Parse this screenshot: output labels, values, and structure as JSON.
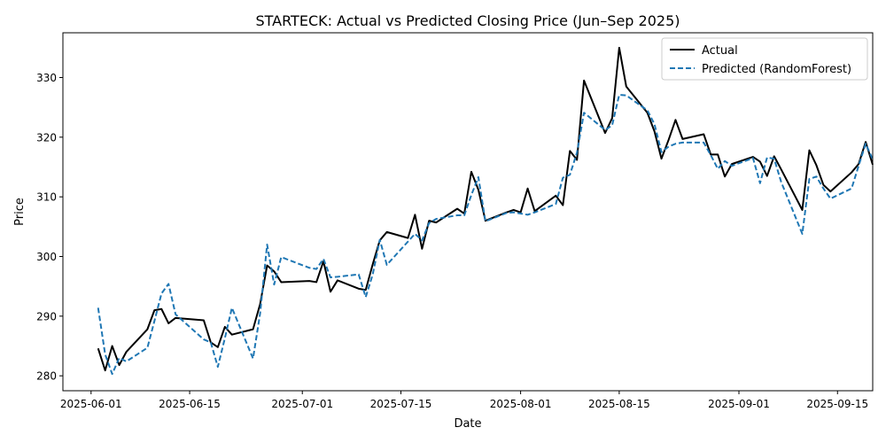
{
  "chart_data": {
    "type": "line",
    "title": "STARTECK: Actual vs Predicted Closing Price (Jun–Sep 2025)",
    "xlabel": "Date",
    "ylabel": "Price",
    "x_axis_type": "date",
    "xlim": [
      "2025-05-28",
      "2025-09-20"
    ],
    "ylim": [
      277.5,
      337.5
    ],
    "x_ticks": [
      "2025-06-01",
      "2025-06-15",
      "2025-07-01",
      "2025-07-15",
      "2025-08-01",
      "2025-08-15",
      "2025-09-01",
      "2025-09-15"
    ],
    "y_ticks": [
      280,
      290,
      300,
      310,
      320,
      330
    ],
    "grid": false,
    "legend_position": "top-right",
    "series": [
      {
        "name": "Actual",
        "color": "#000000",
        "style": "solid",
        "points": [
          [
            "2025-06-02",
            284.6
          ],
          [
            "2025-06-03",
            280.9
          ],
          [
            "2025-06-04",
            285.0
          ],
          [
            "2025-06-05",
            281.8
          ],
          [
            "2025-06-06",
            284.0
          ],
          [
            "2025-06-09",
            287.8
          ],
          [
            "2025-06-10",
            291.0
          ],
          [
            "2025-06-11",
            291.2
          ],
          [
            "2025-06-12",
            288.8
          ],
          [
            "2025-06-13",
            289.7
          ],
          [
            "2025-06-17",
            289.3
          ],
          [
            "2025-06-18",
            285.6
          ],
          [
            "2025-06-19",
            284.8
          ],
          [
            "2025-06-20",
            288.2
          ],
          [
            "2025-06-21",
            286.9
          ],
          [
            "2025-06-24",
            287.8
          ],
          [
            "2025-06-25",
            292.0
          ],
          [
            "2025-06-26",
            298.5
          ],
          [
            "2025-06-27",
            297.5
          ],
          [
            "2025-06-28",
            295.7
          ],
          [
            "2025-07-02",
            295.9
          ],
          [
            "2025-07-03",
            295.7
          ],
          [
            "2025-07-04",
            299.2
          ],
          [
            "2025-07-05",
            294.1
          ],
          [
            "2025-07-06",
            296.0
          ],
          [
            "2025-07-09",
            294.6
          ],
          [
            "2025-07-10",
            294.4
          ],
          [
            "2025-07-11",
            298.7
          ],
          [
            "2025-07-12",
            302.7
          ],
          [
            "2025-07-13",
            304.1
          ],
          [
            "2025-07-16",
            303.1
          ],
          [
            "2025-07-17",
            307.0
          ],
          [
            "2025-07-18",
            301.3
          ],
          [
            "2025-07-19",
            306.0
          ],
          [
            "2025-07-20",
            305.7
          ],
          [
            "2025-07-23",
            308.0
          ],
          [
            "2025-07-24",
            307.2
          ],
          [
            "2025-07-25",
            314.2
          ],
          [
            "2025-07-26",
            311.2
          ],
          [
            "2025-07-27",
            306.0
          ],
          [
            "2025-07-30",
            307.4
          ],
          [
            "2025-07-31",
            307.8
          ],
          [
            "2025-08-01",
            307.4
          ],
          [
            "2025-08-02",
            311.4
          ],
          [
            "2025-08-03",
            307.6
          ],
          [
            "2025-08-06",
            310.2
          ],
          [
            "2025-08-07",
            308.6
          ],
          [
            "2025-08-08",
            317.7
          ],
          [
            "2025-08-09",
            316.2
          ],
          [
            "2025-08-10",
            329.5
          ],
          [
            "2025-08-13",
            320.7
          ],
          [
            "2025-08-14",
            323.2
          ],
          [
            "2025-08-15",
            335.0
          ],
          [
            "2025-08-16",
            328.5
          ],
          [
            "2025-08-19",
            324.1
          ],
          [
            "2025-08-20",
            321.0
          ],
          [
            "2025-08-21",
            316.4
          ],
          [
            "2025-08-22",
            319.5
          ],
          [
            "2025-08-23",
            322.9
          ],
          [
            "2025-08-24",
            319.7
          ],
          [
            "2025-08-27",
            320.5
          ],
          [
            "2025-08-28",
            317.1
          ],
          [
            "2025-08-29",
            317.1
          ],
          [
            "2025-08-30",
            313.4
          ],
          [
            "2025-08-31",
            315.5
          ],
          [
            "2025-09-03",
            316.7
          ],
          [
            "2025-09-04",
            315.9
          ],
          [
            "2025-09-05",
            313.5
          ],
          [
            "2025-09-06",
            316.8
          ],
          [
            "2025-09-07",
            314.6
          ],
          [
            "2025-09-10",
            307.8
          ],
          [
            "2025-09-11",
            317.8
          ],
          [
            "2025-09-12",
            315.3
          ],
          [
            "2025-09-13",
            312.0
          ],
          [
            "2025-09-14",
            310.9
          ],
          [
            "2025-09-17",
            314.1
          ],
          [
            "2025-09-18",
            315.5
          ],
          [
            "2025-09-19",
            319.2
          ],
          [
            "2025-09-20",
            315.4
          ]
        ]
      },
      {
        "name": "Predicted (RandomForest)",
        "color": "#1f77b4",
        "style": "dashed",
        "points": [
          [
            "2025-06-02",
            291.4
          ],
          [
            "2025-06-03",
            283.6
          ],
          [
            "2025-06-04",
            280.3
          ],
          [
            "2025-06-05",
            283.0
          ],
          [
            "2025-06-06",
            282.4
          ],
          [
            "2025-06-09",
            284.7
          ],
          [
            "2025-06-10",
            289.2
          ],
          [
            "2025-06-11",
            293.8
          ],
          [
            "2025-06-12",
            295.4
          ],
          [
            "2025-06-13",
            290.3
          ],
          [
            "2025-06-17",
            286.1
          ],
          [
            "2025-06-18",
            285.6
          ],
          [
            "2025-06-19",
            281.5
          ],
          [
            "2025-06-20",
            286.3
          ],
          [
            "2025-06-21",
            291.4
          ],
          [
            "2025-06-24",
            282.9
          ],
          [
            "2025-06-25",
            290.4
          ],
          [
            "2025-06-26",
            302.0
          ],
          [
            "2025-06-27",
            295.3
          ],
          [
            "2025-06-28",
            299.9
          ],
          [
            "2025-07-02",
            298.1
          ],
          [
            "2025-07-03",
            297.9
          ],
          [
            "2025-07-04",
            299.6
          ],
          [
            "2025-07-05",
            296.5
          ],
          [
            "2025-07-06",
            296.6
          ],
          [
            "2025-07-09",
            297.0
          ],
          [
            "2025-07-10",
            293.2
          ],
          [
            "2025-07-11",
            297.0
          ],
          [
            "2025-07-12",
            302.8
          ],
          [
            "2025-07-13",
            298.6
          ],
          [
            "2025-07-16",
            302.5
          ],
          [
            "2025-07-17",
            303.8
          ],
          [
            "2025-07-18",
            302.7
          ],
          [
            "2025-07-19",
            305.6
          ],
          [
            "2025-07-20",
            306.3
          ],
          [
            "2025-07-23",
            306.9
          ],
          [
            "2025-07-24",
            306.9
          ],
          [
            "2025-07-25",
            310.3
          ],
          [
            "2025-07-26",
            313.3
          ],
          [
            "2025-07-27",
            305.9
          ],
          [
            "2025-07-30",
            307.3
          ],
          [
            "2025-07-31",
            307.4
          ],
          [
            "2025-08-01",
            307.2
          ],
          [
            "2025-08-02",
            307.0
          ],
          [
            "2025-08-03",
            307.4
          ],
          [
            "2025-08-06",
            308.8
          ],
          [
            "2025-08-07",
            313.2
          ],
          [
            "2025-08-08",
            313.7
          ],
          [
            "2025-08-09",
            317.4
          ],
          [
            "2025-08-10",
            324.1
          ],
          [
            "2025-08-13",
            321.2
          ],
          [
            "2025-08-14",
            322.0
          ],
          [
            "2025-08-15",
            327.1
          ],
          [
            "2025-08-16",
            327.0
          ],
          [
            "2025-08-19",
            324.5
          ],
          [
            "2025-08-20",
            322.2
          ],
          [
            "2025-08-21",
            317.5
          ],
          [
            "2025-08-22",
            318.4
          ],
          [
            "2025-08-23",
            318.9
          ],
          [
            "2025-08-24",
            319.1
          ],
          [
            "2025-08-27",
            319.1
          ],
          [
            "2025-08-28",
            317.0
          ],
          [
            "2025-08-29",
            314.7
          ],
          [
            "2025-08-30",
            316.0
          ],
          [
            "2025-08-31",
            315.2
          ],
          [
            "2025-09-03",
            316.5
          ],
          [
            "2025-09-04",
            312.3
          ],
          [
            "2025-09-05",
            316.6
          ],
          [
            "2025-09-06",
            316.4
          ],
          [
            "2025-09-07",
            312.5
          ],
          [
            "2025-09-10",
            303.8
          ],
          [
            "2025-09-11",
            313.0
          ],
          [
            "2025-09-12",
            313.4
          ],
          [
            "2025-09-13",
            311.4
          ],
          [
            "2025-09-14",
            309.7
          ],
          [
            "2025-09-17",
            311.4
          ],
          [
            "2025-09-18",
            315.2
          ],
          [
            "2025-09-19",
            318.9
          ],
          [
            "2025-09-20",
            316.3
          ]
        ]
      }
    ]
  }
}
